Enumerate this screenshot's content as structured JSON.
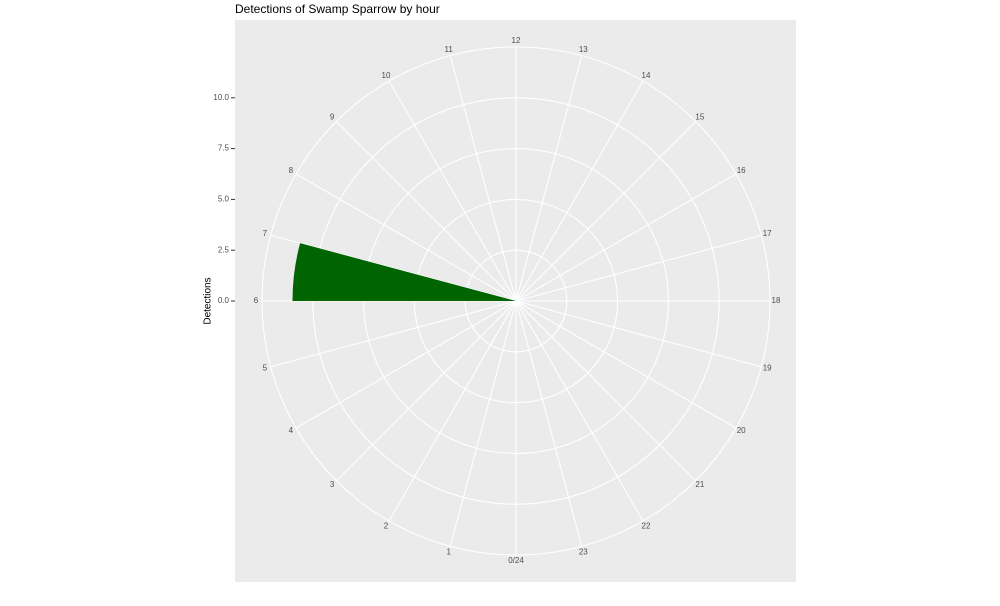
{
  "chart_data": {
    "type": "polar-bar",
    "title": "Detections of Swamp Sparrow by hour",
    "ylabel": "Detections",
    "x": [
      0,
      1,
      2,
      3,
      4,
      5,
      6,
      7,
      8,
      9,
      10,
      11,
      12,
      13,
      14,
      15,
      16,
      17,
      18,
      19,
      20,
      21,
      22,
      23
    ],
    "values": [
      0,
      0,
      0,
      0,
      0,
      0,
      11,
      0,
      0,
      0,
      0,
      0,
      0,
      0,
      0,
      0,
      0,
      0,
      0,
      0,
      0,
      0,
      0,
      0
    ],
    "color": "#006400",
    "xlim": [
      0,
      24
    ],
    "xticks": [
      {
        "value": 0,
        "label": "0/24"
      },
      1,
      2,
      3,
      4,
      5,
      6,
      7,
      8,
      9,
      10,
      11,
      12,
      13,
      14,
      15,
      16,
      17,
      18,
      19,
      20,
      21,
      22,
      23
    ],
    "ylim": [
      0,
      12.5
    ],
    "yticks": [
      {
        "value": 0,
        "label": "0.0"
      },
      2.5,
      {
        "value": 5,
        "label": "5.0"
      },
      7.5,
      {
        "value": 10,
        "label": "10.0"
      }
    ],
    "grid": true
  }
}
